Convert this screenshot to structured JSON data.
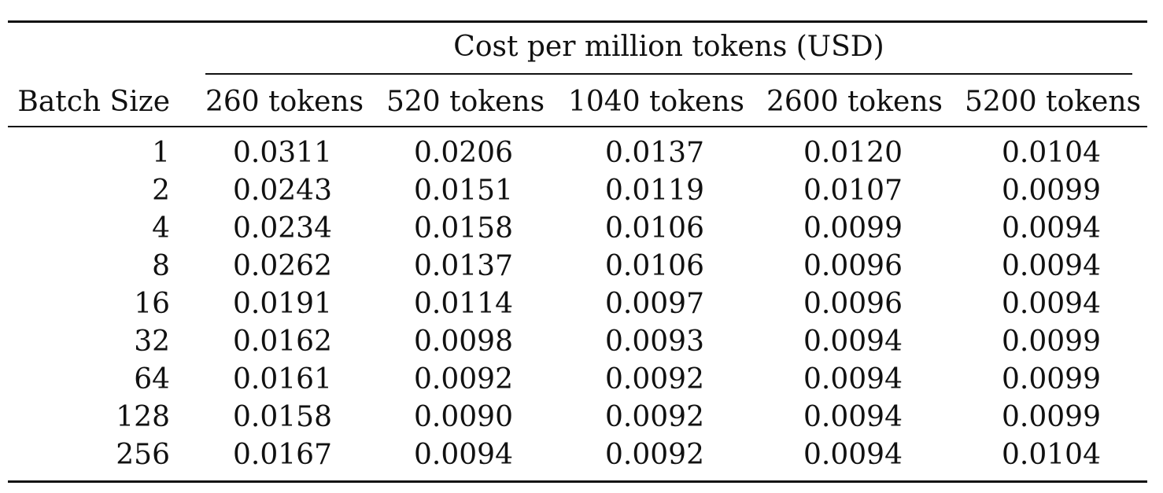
{
  "table": {
    "group_header": "Cost per million tokens (USD)",
    "row_header": "Batch Size",
    "columns": [
      "260 tokens",
      "520 tokens",
      "1040 tokens",
      "2600 tokens",
      "5200 tokens"
    ],
    "rows": [
      {
        "batch": "1",
        "values": [
          "0.0311",
          "0.0206",
          "0.0137",
          "0.0120",
          "0.0104"
        ]
      },
      {
        "batch": "2",
        "values": [
          "0.0243",
          "0.0151",
          "0.0119",
          "0.0107",
          "0.0099"
        ]
      },
      {
        "batch": "4",
        "values": [
          "0.0234",
          "0.0158",
          "0.0106",
          "0.0099",
          "0.0094"
        ]
      },
      {
        "batch": "8",
        "values": [
          "0.0262",
          "0.0137",
          "0.0106",
          "0.0096",
          "0.0094"
        ]
      },
      {
        "batch": "16",
        "values": [
          "0.0191",
          "0.0114",
          "0.0097",
          "0.0096",
          "0.0094"
        ]
      },
      {
        "batch": "32",
        "values": [
          "0.0162",
          "0.0098",
          "0.0093",
          "0.0094",
          "0.0099"
        ]
      },
      {
        "batch": "64",
        "values": [
          "0.0161",
          "0.0092",
          "0.0092",
          "0.0094",
          "0.0099"
        ]
      },
      {
        "batch": "128",
        "values": [
          "0.0158",
          "0.0090",
          "0.0092",
          "0.0094",
          "0.0099"
        ]
      },
      {
        "batch": "256",
        "values": [
          "0.0167",
          "0.0094",
          "0.0092",
          "0.0094",
          "0.0104"
        ]
      }
    ]
  }
}
